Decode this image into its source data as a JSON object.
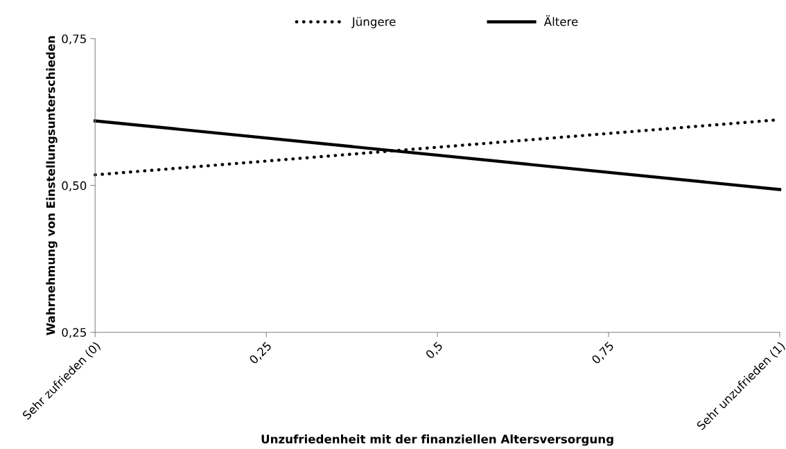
{
  "chart_data": {
    "type": "line",
    "xlabel": "Unzufriedenheit mit der finanziellen Altersversorgung",
    "ylabel": "Wahrnehmung von Einstellungsunterschieden",
    "x": [
      0,
      1
    ],
    "series": [
      {
        "name": "Jüngere",
        "color": "#000000",
        "line_style": "dotted",
        "values": [
          0.518,
          0.612
        ]
      },
      {
        "name": "Ältere",
        "color": "#000000",
        "line_style": "solid",
        "values": [
          0.61,
          0.493
        ]
      }
    ],
    "xlim": [
      0,
      1
    ],
    "xticks": [
      {
        "value": 0,
        "label": "Sehr zufrieden (0)"
      },
      {
        "value": 0.25,
        "label": "0,25"
      },
      {
        "value": 0.5,
        "label": "0,5"
      },
      {
        "value": 0.75,
        "label": "0,75"
      },
      {
        "value": 1,
        "label": "Sehr unzufrieden (1)"
      }
    ],
    "ylim": [
      0.25,
      0.75
    ],
    "yticks": [
      {
        "value": 0.25,
        "label": "0,25"
      },
      {
        "value": 0.5,
        "label": "0,50"
      },
      {
        "value": 0.75,
        "label": "0,75"
      }
    ],
    "grid": false,
    "legend": "top",
    "marker": "none"
  }
}
